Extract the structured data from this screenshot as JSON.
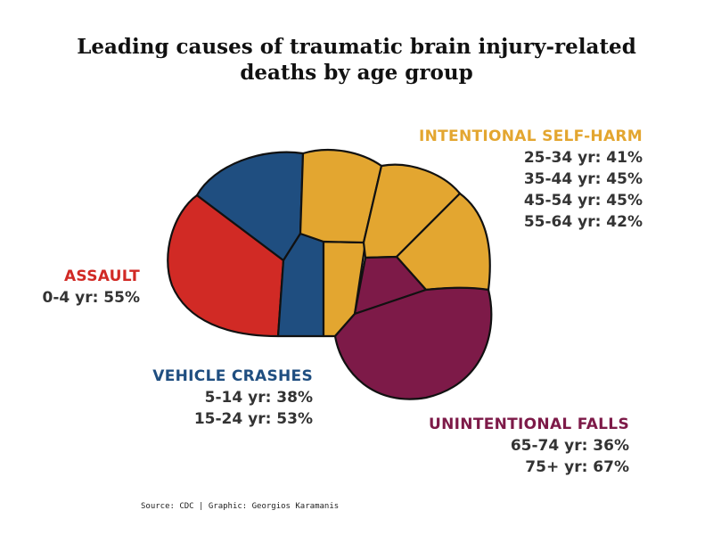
{
  "title_line1": "Leading causes of traumatic brain injury-related",
  "title_line2": "deaths by age group",
  "source": "Source: CDC | Graphic: Georgios Karamanis",
  "colors": {
    "assault": "#d12a25",
    "vehicle": "#1f4e80",
    "self_harm": "#e3a630",
    "falls": "#7d1a48",
    "outline": "#111111"
  },
  "chart_data": {
    "type": "other",
    "title": "Leading causes of traumatic brain injury-related deaths by age group",
    "groups": [
      {
        "cause": "ASSAULT",
        "color": "#d12a25",
        "rows": [
          {
            "age": "0-4 yr",
            "pct": 55,
            "text": "0-4 yr: 55%"
          }
        ]
      },
      {
        "cause": "VEHICLE CRASHES",
        "color": "#1f4e80",
        "rows": [
          {
            "age": "5-14 yr",
            "pct": 38,
            "text": "5-14 yr: 38%"
          },
          {
            "age": "15-24 yr",
            "pct": 53,
            "text": "15-24 yr: 53%"
          }
        ]
      },
      {
        "cause": "INTENTIONAL SELF-HARM",
        "color": "#e3a630",
        "rows": [
          {
            "age": "25-34 yr",
            "pct": 41,
            "text": "25-34 yr: 41%"
          },
          {
            "age": "35-44 yr",
            "pct": 45,
            "text": "35-44 yr: 45%"
          },
          {
            "age": "45-54 yr",
            "pct": 45,
            "text": "45-54 yr: 45%"
          },
          {
            "age": "55-64 yr",
            "pct": 42,
            "text": "55-64 yr: 42%"
          }
        ]
      },
      {
        "cause": "UNINTENTIONAL FALLS",
        "color": "#7d1a48",
        "rows": [
          {
            "age": "65-74 yr",
            "pct": 36,
            "text": "65-74 yr: 36%"
          },
          {
            "age": "75+ yr",
            "pct": 67,
            "text": "75+ yr: 67%"
          }
        ]
      }
    ]
  }
}
